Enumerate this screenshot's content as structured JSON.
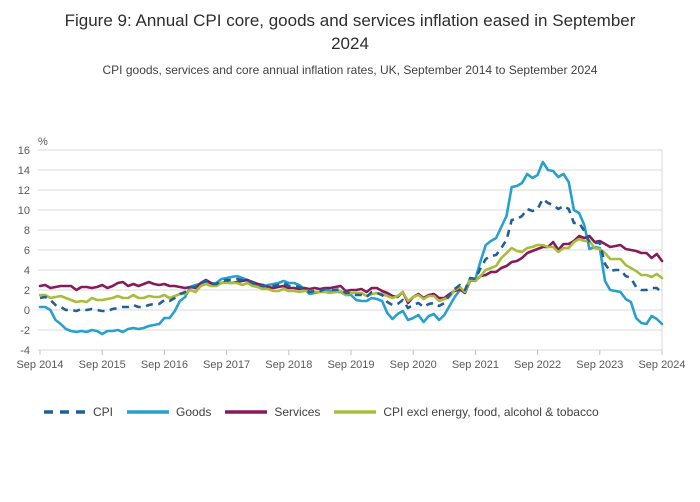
{
  "chart_data": {
    "type": "line",
    "title": "Figure 9: Annual CPI core, goods and services inflation eased in September 2024",
    "subtitle": "CPI goods, services and core annual inflation rates, UK, September 2014 to September 2024",
    "unit_label": "%",
    "frequency": "monthly",
    "x_start": "Sep 2014",
    "x_end": "Sep 2024",
    "x_tick_labels": [
      "Sep 2014",
      "Sep 2015",
      "Sep 2016",
      "Sep 2017",
      "Sep 2018",
      "Sep 2019",
      "Sep 2020",
      "Sep 2021",
      "Sep 2022",
      "Sep 2023",
      "Sep 2024"
    ],
    "y_ticks": [
      16,
      14,
      12,
      10,
      8,
      6,
      4,
      2,
      0,
      -2,
      -4
    ],
    "ylim": [
      -4,
      16
    ],
    "grid": "horizontal",
    "grid_color": "#d9d9d9",
    "tick_color": "#c0c0c0",
    "axis_text_color": "#595959",
    "legend_position": "bottom",
    "series": [
      {
        "name": "CPI",
        "color": "#206095",
        "dash": true,
        "values": [
          1.2,
          1.3,
          1.0,
          0.5,
          0.3,
          0.0,
          0.0,
          -0.1,
          0.1,
          0.0,
          0.1,
          0.0,
          -0.1,
          -0.1,
          0.1,
          0.2,
          0.3,
          0.3,
          0.5,
          0.3,
          0.3,
          0.5,
          0.6,
          0.6,
          1.0,
          0.9,
          1.2,
          1.6,
          1.8,
          2.3,
          2.3,
          2.7,
          2.9,
          2.6,
          2.6,
          2.9,
          3.0,
          3.0,
          3.1,
          3.0,
          3.0,
          2.7,
          2.5,
          2.4,
          2.4,
          2.4,
          2.5,
          2.7,
          2.4,
          2.4,
          2.3,
          2.1,
          1.8,
          1.9,
          1.9,
          2.1,
          2.0,
          2.0,
          2.1,
          1.7,
          1.7,
          1.5,
          1.5,
          1.3,
          1.8,
          1.7,
          1.5,
          0.8,
          0.5,
          0.6,
          1.0,
          0.2,
          0.5,
          0.7,
          0.3,
          0.6,
          0.7,
          0.4,
          0.7,
          1.5,
          2.1,
          2.5,
          2.0,
          3.2,
          3.1,
          4.2,
          5.1,
          5.4,
          5.5,
          6.2,
          7.0,
          9.0,
          9.1,
          9.4,
          10.1,
          9.9,
          10.1,
          11.1,
          10.7,
          10.5,
          10.1,
          10.4,
          10.1,
          8.7,
          8.7,
          7.9,
          6.8,
          6.7,
          6.7,
          4.6,
          3.9,
          4.0,
          4.0,
          3.4,
          3.2,
          2.3,
          2.0,
          2.0,
          2.2,
          2.2,
          1.7
        ]
      },
      {
        "name": "Goods",
        "color": "#27a0cc",
        "dash": false,
        "values": [
          0.3,
          0.3,
          0.0,
          -1.0,
          -1.4,
          -1.9,
          -2.1,
          -2.2,
          -2.1,
          -2.2,
          -2.0,
          -2.1,
          -2.4,
          -2.1,
          -2.1,
          -2.0,
          -2.2,
          -1.9,
          -1.8,
          -1.9,
          -1.8,
          -1.6,
          -1.5,
          -1.4,
          -0.8,
          -0.8,
          -0.1,
          0.9,
          1.3,
          2.3,
          2.5,
          2.6,
          2.9,
          2.6,
          2.7,
          3.1,
          3.2,
          3.3,
          3.4,
          3.2,
          3.0,
          2.6,
          2.4,
          2.3,
          2.5,
          2.6,
          2.7,
          2.9,
          2.7,
          2.7,
          2.5,
          2.1,
          1.6,
          1.7,
          1.8,
          2.1,
          1.9,
          1.8,
          1.8,
          1.5,
          1.5,
          1.0,
          0.9,
          0.9,
          1.2,
          1.1,
          0.9,
          -0.3,
          -0.9,
          -0.4,
          -0.1,
          -1.0,
          -0.8,
          -0.5,
          -1.2,
          -0.6,
          -0.4,
          -1.0,
          -0.5,
          0.4,
          1.3,
          2.0,
          1.8,
          3.2,
          3.1,
          4.9,
          6.5,
          6.9,
          7.2,
          8.3,
          9.4,
          12.3,
          12.4,
          12.7,
          13.6,
          13.2,
          13.5,
          14.8,
          14.0,
          13.9,
          13.3,
          13.6,
          12.8,
          10.0,
          9.7,
          8.5,
          6.1,
          6.3,
          6.2,
          2.9,
          2.0,
          1.9,
          1.8,
          1.1,
          0.8,
          -0.8,
          -1.3,
          -1.4,
          -0.6,
          -0.9,
          -1.4
        ]
      },
      {
        "name": "Services",
        "color": "#871a5b",
        "dash": false,
        "values": [
          2.4,
          2.5,
          2.2,
          2.3,
          2.4,
          2.4,
          2.4,
          2.0,
          2.3,
          2.3,
          2.2,
          2.3,
          2.5,
          2.2,
          2.4,
          2.7,
          2.8,
          2.4,
          2.6,
          2.4,
          2.6,
          2.8,
          2.6,
          2.5,
          2.6,
          2.4,
          2.4,
          2.3,
          2.2,
          2.3,
          2.2,
          2.7,
          3.0,
          2.7,
          2.5,
          2.7,
          2.8,
          2.7,
          2.8,
          2.9,
          3.0,
          2.8,
          2.6,
          2.5,
          2.3,
          2.2,
          2.3,
          2.4,
          2.2,
          2.2,
          2.1,
          2.2,
          2.1,
          2.2,
          2.1,
          2.2,
          2.2,
          2.3,
          2.4,
          1.9,
          2.0,
          2.0,
          2.1,
          1.8,
          2.2,
          2.2,
          1.9,
          1.7,
          1.4,
          1.3,
          1.8,
          0.7,
          1.3,
          1.6,
          1.2,
          1.5,
          1.6,
          1.2,
          1.2,
          1.6,
          1.9,
          2.1,
          1.7,
          3.0,
          2.9,
          3.4,
          3.5,
          3.8,
          3.8,
          4.2,
          4.4,
          4.8,
          4.9,
          5.2,
          5.7,
          5.9,
          6.1,
          6.3,
          6.3,
          6.8,
          6.0,
          6.6,
          6.6,
          6.9,
          7.4,
          7.2,
          7.4,
          6.8,
          6.9,
          6.6,
          6.3,
          6.4,
          6.5,
          6.1,
          6.0,
          5.9,
          5.7,
          5.7,
          5.2,
          5.6,
          4.9
        ]
      },
      {
        "name": "CPI excl energy, food, alcohol & tobacco",
        "color": "#a8bd3a",
        "dash": false,
        "values": [
          1.5,
          1.5,
          1.2,
          1.3,
          1.4,
          1.2,
          1.0,
          0.8,
          0.9,
          0.8,
          1.2,
          1.0,
          1.0,
          1.1,
          1.2,
          1.4,
          1.2,
          1.2,
          1.5,
          1.2,
          1.2,
          1.4,
          1.3,
          1.3,
          1.5,
          1.2,
          1.4,
          1.6,
          1.6,
          2.0,
          1.8,
          2.4,
          2.6,
          2.4,
          2.4,
          2.7,
          2.7,
          2.7,
          2.7,
          2.5,
          2.7,
          2.4,
          2.3,
          2.1,
          2.1,
          1.9,
          1.9,
          2.1,
          1.9,
          1.9,
          1.8,
          1.9,
          1.9,
          1.8,
          1.8,
          1.8,
          1.7,
          1.8,
          1.9,
          1.5,
          1.7,
          1.7,
          1.7,
          1.4,
          1.6,
          1.7,
          1.6,
          1.4,
          1.2,
          1.4,
          1.8,
          0.9,
          1.3,
          1.5,
          1.1,
          1.4,
          1.4,
          0.9,
          1.1,
          1.3,
          2.0,
          2.3,
          1.8,
          3.1,
          2.9,
          3.4,
          4.0,
          4.2,
          4.4,
          5.2,
          5.7,
          6.2,
          5.9,
          5.8,
          6.2,
          6.3,
          6.5,
          6.5,
          6.3,
          6.3,
          5.8,
          6.2,
          6.2,
          6.8,
          7.1,
          6.9,
          6.9,
          6.2,
          6.1,
          5.7,
          5.1,
          5.1,
          5.1,
          4.5,
          4.2,
          3.9,
          3.5,
          3.5,
          3.3,
          3.6,
          3.2
        ]
      }
    ]
  }
}
